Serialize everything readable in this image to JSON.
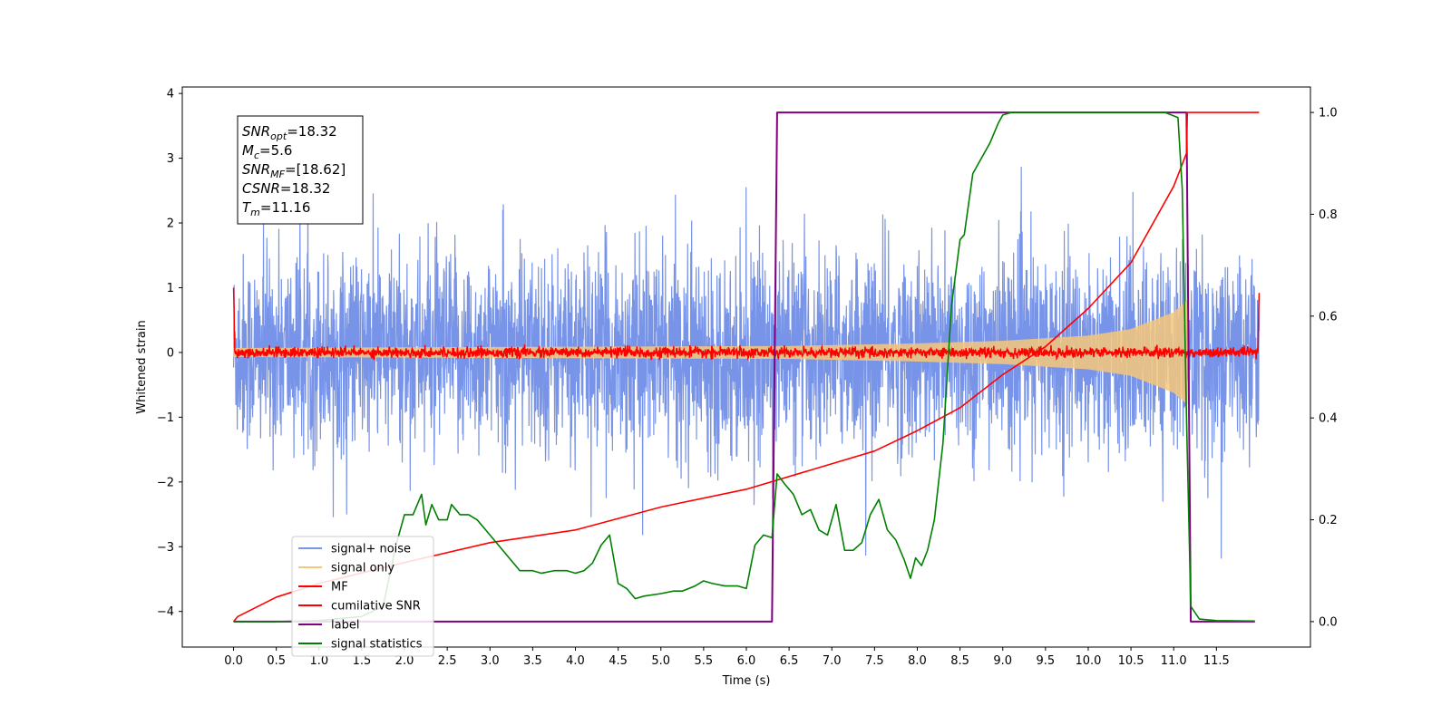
{
  "chart_data": {
    "type": "line",
    "title": "",
    "xlabel": "Time (s)",
    "ylabel": "Whitened strain",
    "xlim": [
      -0.6,
      12.6
    ],
    "ylim": [
      -4.55,
      4.1
    ],
    "y2lim": [
      -0.05,
      1.05
    ],
    "x_ticks": [
      "0.0",
      "0.5",
      "1.0",
      "1.5",
      "2.0",
      "2.5",
      "3.0",
      "3.5",
      "4.0",
      "4.5",
      "5.0",
      "5.5",
      "6.0",
      "6.5",
      "7.0",
      "7.5",
      "8.0",
      "8.5",
      "9.0",
      "9.5",
      "10.0",
      "10.5",
      "11.0",
      "11.5"
    ],
    "y_ticks": [
      "4",
      "3",
      "2",
      "1",
      "0",
      "−1",
      "−2",
      "−3",
      "−4"
    ],
    "y2_ticks": [
      "1.0",
      "0.8",
      "0.6",
      "0.4",
      "0.2",
      "0.0"
    ],
    "annotation": {
      "lines": [
        {
          "sym": "SNR",
          "sub": "opt",
          "rest": "=18.32"
        },
        {
          "sym": "M",
          "sub": "c",
          "rest": "=5.6"
        },
        {
          "sym": "SNR",
          "sub": "MF",
          "rest": "=[18.62]"
        },
        {
          "sym": "CSNR",
          "sub": "",
          "rest": "=18.32"
        },
        {
          "sym": "T",
          "sub": "m",
          "rest": "=11.16"
        }
      ]
    },
    "legend_position": "lower-left",
    "series": [
      {
        "name": "signal+ noise",
        "color": "#7894e8",
        "axis": "left",
        "description_values": {
          "noise_std": 0.75,
          "time_range": [
            0.0,
            12.0
          ]
        }
      },
      {
        "name": "signal only",
        "color": "#f5c77a",
        "axis": "left",
        "envelope": {
          "t": [
            0.0,
            6.5,
            8.0,
            9.0,
            10.0,
            10.5,
            11.0,
            11.16
          ],
          "amp": [
            0.07,
            0.1,
            0.14,
            0.18,
            0.26,
            0.36,
            0.62,
            0.8
          ]
        }
      },
      {
        "name": "MF",
        "color": "#ff0000",
        "axis": "left",
        "description_values": {
          "start": 1.0,
          "end": 0.92,
          "noise_std": 0.04
        }
      },
      {
        "name": "cumilative SNR",
        "color": "#ff0000",
        "axis": "right",
        "x": [
          0.0,
          0.05,
          0.5,
          1.0,
          2.0,
          3.0,
          4.0,
          5.0,
          6.0,
          7.0,
          7.5,
          8.0,
          8.5,
          9.0,
          9.5,
          10.0,
          10.5,
          11.0,
          11.15,
          11.16,
          12.0
        ],
        "y": [
          0.0,
          0.01,
          0.048,
          0.075,
          0.116,
          0.155,
          0.18,
          0.225,
          0.26,
          0.31,
          0.335,
          0.375,
          0.42,
          0.485,
          0.54,
          0.615,
          0.705,
          0.855,
          0.92,
          1.0,
          1.0
        ]
      },
      {
        "name": "label",
        "color": "#800080",
        "axis": "right",
        "x": [
          0.0,
          6.3,
          6.36,
          11.15,
          11.2,
          11.95
        ],
        "y": [
          0.0,
          0.0,
          1.0,
          1.0,
          0.0,
          0.0
        ]
      },
      {
        "name": "signal statistics",
        "color": "#008000",
        "axis": "right",
        "x": [
          0.0,
          0.5,
          1.0,
          1.5,
          1.75,
          1.9,
          2.0,
          2.1,
          2.2,
          2.25,
          2.32,
          2.4,
          2.5,
          2.55,
          2.65,
          2.75,
          2.85,
          2.95,
          3.05,
          3.15,
          3.25,
          3.35,
          3.5,
          3.6,
          3.75,
          3.9,
          4.0,
          4.1,
          4.2,
          4.3,
          4.4,
          4.5,
          4.6,
          4.7,
          4.8,
          5.0,
          5.15,
          5.25,
          5.4,
          5.5,
          5.6,
          5.75,
          5.9,
          6.0,
          6.1,
          6.2,
          6.3,
          6.36,
          6.45,
          6.55,
          6.65,
          6.75,
          6.85,
          6.95,
          7.05,
          7.15,
          7.25,
          7.35,
          7.45,
          7.55,
          7.65,
          7.75,
          7.85,
          7.92,
          7.98,
          8.05,
          8.12,
          8.2,
          8.3,
          8.4,
          8.5,
          8.55,
          8.65,
          8.75,
          8.85,
          8.95,
          9.0,
          9.1,
          9.2,
          9.4,
          9.6,
          10.0,
          10.5,
          10.9,
          11.05,
          11.1,
          11.15,
          11.2,
          11.3,
          11.5,
          11.95
        ],
        "y": [
          0.0,
          0.0,
          0.002,
          0.01,
          0.03,
          0.15,
          0.21,
          0.21,
          0.25,
          0.19,
          0.23,
          0.2,
          0.2,
          0.23,
          0.21,
          0.21,
          0.2,
          0.18,
          0.16,
          0.14,
          0.12,
          0.1,
          0.1,
          0.095,
          0.1,
          0.1,
          0.095,
          0.1,
          0.115,
          0.15,
          0.17,
          0.075,
          0.065,
          0.045,
          0.05,
          0.055,
          0.06,
          0.06,
          0.07,
          0.08,
          0.075,
          0.07,
          0.07,
          0.065,
          0.15,
          0.17,
          0.165,
          0.29,
          0.27,
          0.25,
          0.21,
          0.22,
          0.18,
          0.17,
          0.23,
          0.14,
          0.14,
          0.155,
          0.21,
          0.24,
          0.18,
          0.16,
          0.12,
          0.085,
          0.125,
          0.11,
          0.14,
          0.2,
          0.35,
          0.62,
          0.75,
          0.76,
          0.88,
          0.91,
          0.94,
          0.98,
          0.995,
          1.0,
          1.0,
          1.0,
          1.0,
          1.0,
          1.0,
          1.0,
          0.99,
          0.85,
          0.4,
          0.03,
          0.005,
          0.002,
          0.001
        ]
      }
    ]
  }
}
